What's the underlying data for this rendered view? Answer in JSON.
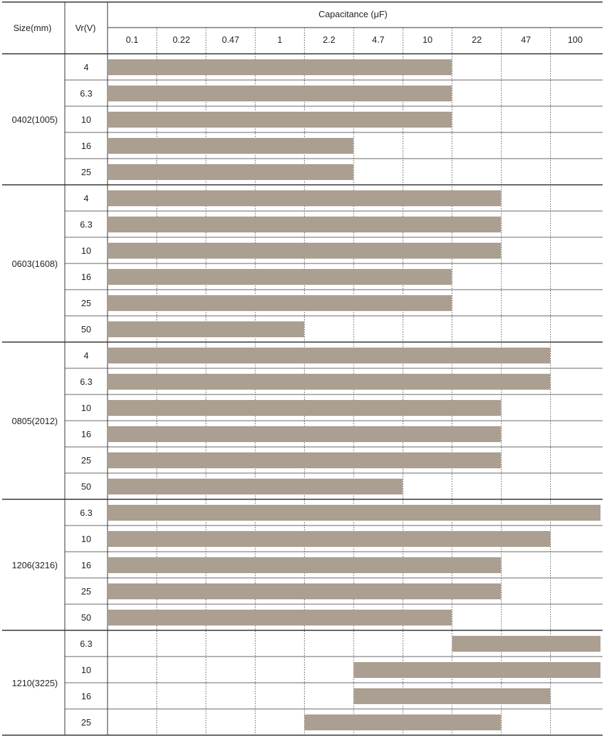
{
  "chart_data": {
    "type": "bar",
    "orientation": "horizontal-range",
    "header": {
      "size_label": "Size(mm)",
      "voltage_label": "Vr(V)",
      "axis_title": "Capacitance (μF)"
    },
    "x_ticks": [
      "0.1",
      "0.22",
      "0.47",
      "1",
      "2.2",
      "4.7",
      "10",
      "22",
      "47",
      "100"
    ],
    "bar_color": "#ab9f91",
    "groups": [
      {
        "size": "0402(1005)",
        "rows": [
          {
            "voltage": "4",
            "min": "0.1",
            "max": "10"
          },
          {
            "voltage": "6.3",
            "min": "0.1",
            "max": "10"
          },
          {
            "voltage": "10",
            "min": "0.1",
            "max": "10"
          },
          {
            "voltage": "16",
            "min": "0.1",
            "max": "2.2"
          },
          {
            "voltage": "25",
            "min": "0.1",
            "max": "2.2"
          }
        ]
      },
      {
        "size": "0603(1608)",
        "rows": [
          {
            "voltage": "4",
            "min": "0.1",
            "max": "22"
          },
          {
            "voltage": "6.3",
            "min": "0.1",
            "max": "22"
          },
          {
            "voltage": "10",
            "min": "0.1",
            "max": "22"
          },
          {
            "voltage": "16",
            "min": "0.1",
            "max": "10"
          },
          {
            "voltage": "25",
            "min": "0.1",
            "max": "10"
          },
          {
            "voltage": "50",
            "min": "0.1",
            "max": "1"
          }
        ]
      },
      {
        "size": "0805(2012)",
        "rows": [
          {
            "voltage": "4",
            "min": "0.1",
            "max": "47"
          },
          {
            "voltage": "6.3",
            "min": "0.1",
            "max": "47"
          },
          {
            "voltage": "10",
            "min": "0.1",
            "max": "22"
          },
          {
            "voltage": "16",
            "min": "0.1",
            "max": "22"
          },
          {
            "voltage": "25",
            "min": "0.1",
            "max": "22"
          },
          {
            "voltage": "50",
            "min": "0.1",
            "max": "4.7"
          }
        ]
      },
      {
        "size": "1206(3216)",
        "rows": [
          {
            "voltage": "6.3",
            "min": "0.1",
            "max": "100"
          },
          {
            "voltage": "10",
            "min": "0.1",
            "max": "47"
          },
          {
            "voltage": "16",
            "min": "0.1",
            "max": "22"
          },
          {
            "voltage": "25",
            "min": "0.1",
            "max": "22"
          },
          {
            "voltage": "50",
            "min": "0.1",
            "max": "10"
          }
        ]
      },
      {
        "size": "1210(3225)",
        "rows": [
          {
            "voltage": "6.3",
            "min": "22",
            "max": "100"
          },
          {
            "voltage": "10",
            "min": "4.7",
            "max": "100"
          },
          {
            "voltage": "16",
            "min": "4.7",
            "max": "47"
          },
          {
            "voltage": "25",
            "min": "2.2",
            "max": "22"
          }
        ]
      }
    ]
  }
}
